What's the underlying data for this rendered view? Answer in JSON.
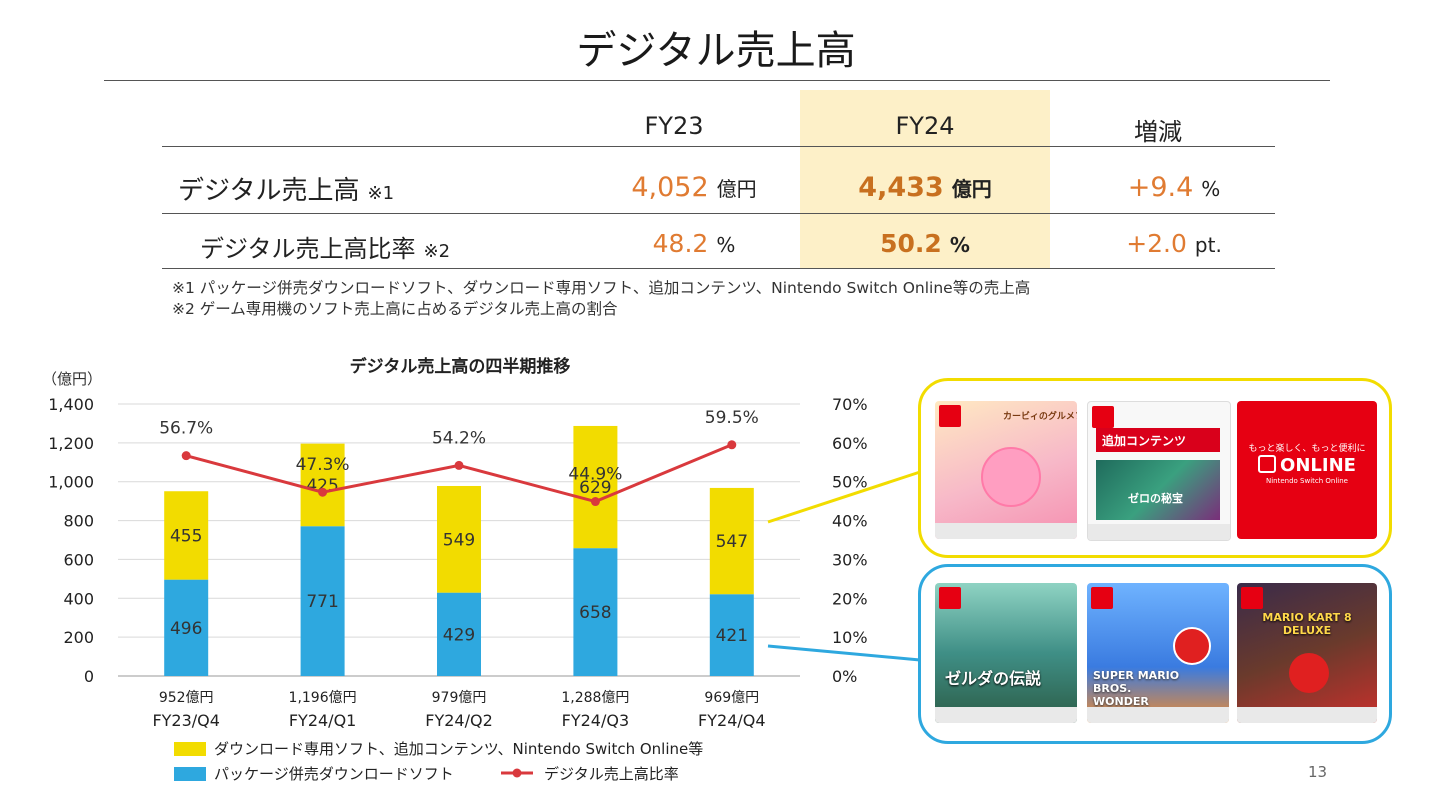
{
  "title": "デジタル売上高",
  "table": {
    "headers": {
      "fy23": "FY23",
      "fy24": "FY24",
      "change": "増減"
    },
    "rows": [
      {
        "label": "デジタル売上高",
        "note_mark": "※1",
        "fy23_value": "4,052",
        "fy23_unit": "億円",
        "fy24_value": "4,433",
        "fy24_unit": "億円",
        "change_value": "+9.4",
        "change_unit": "%"
      },
      {
        "label": "デジタル売上高比率",
        "note_mark": "※2",
        "fy23_value": "48.2",
        "fy23_unit": "%",
        "fy24_value": "50.2",
        "fy24_unit": "%",
        "change_value": "+2.0",
        "change_unit": "pt."
      }
    ],
    "footnotes": [
      "※1 パッケージ併売ダウンロードソフト、ダウンロード専用ソフト、追加コンテンツ、Nintendo Switch Online等の売上高",
      "※2 ゲーム専用機のソフト売上高に占めるデジタル売上高の割合"
    ]
  },
  "chart_data": {
    "type": "bar",
    "stacked": true,
    "title": "デジタル売上高の四半期推移",
    "y_unit": "（億円）",
    "categories": [
      "FY23/Q4",
      "FY24/Q1",
      "FY24/Q2",
      "FY24/Q3",
      "FY24/Q4"
    ],
    "totals": [
      "952億円",
      "1,196億円",
      "979億円",
      "1,288億円",
      "969億円"
    ],
    "ylim": [
      0,
      1400
    ],
    "yticks": [
      "0",
      "200",
      "400",
      "600",
      "800",
      "1,000",
      "1,200",
      "1,400"
    ],
    "y2lim": [
      0,
      70
    ],
    "y2ticks": [
      "0%",
      "10%",
      "20%",
      "30%",
      "40%",
      "50%",
      "60%",
      "70%"
    ],
    "grid": true,
    "series": [
      {
        "name": "パッケージ併売ダウンロードソフト",
        "type": "bar",
        "color": "#2ea8df",
        "values": [
          496,
          771,
          429,
          658,
          421
        ]
      },
      {
        "name": "ダウンロード専用ソフト、追加コンテンツ、Nintendo Switch Online等",
        "type": "bar",
        "color": "#f2dc00",
        "values": [
          455,
          425,
          549,
          629,
          547
        ]
      },
      {
        "name": "デジタル売上高比率",
        "type": "line",
        "axis": "right",
        "color": "#d9393d",
        "values": [
          56.7,
          47.3,
          54.2,
          44.9,
          59.5
        ],
        "labels": [
          "56.7%",
          "47.3%",
          "54.2%",
          "44.9%",
          "59.5%"
        ]
      }
    ],
    "legend": "bottom"
  },
  "colors": {
    "accent_orange": "#e07b32",
    "highlight": "#fdf0c8",
    "panel_yellow": "#f2dc00",
    "panel_blue": "#2ea8df",
    "nintendo_red": "#e60012"
  },
  "cards": {
    "yellow": [
      "カービィのグルメフェス",
      "追加コンテンツ",
      "ONLINE"
    ],
    "blue": [
      "ゼルダの伝説",
      "SUPER MARIO BROS. WONDER",
      "MARIO KART 8 DELUXE"
    ],
    "dlc_sub": "ゼロの秘宝",
    "online_tag": "もっと楽しく、もっと便利に",
    "online_sub": "Nintendo Switch Online"
  },
  "page_number": "13"
}
